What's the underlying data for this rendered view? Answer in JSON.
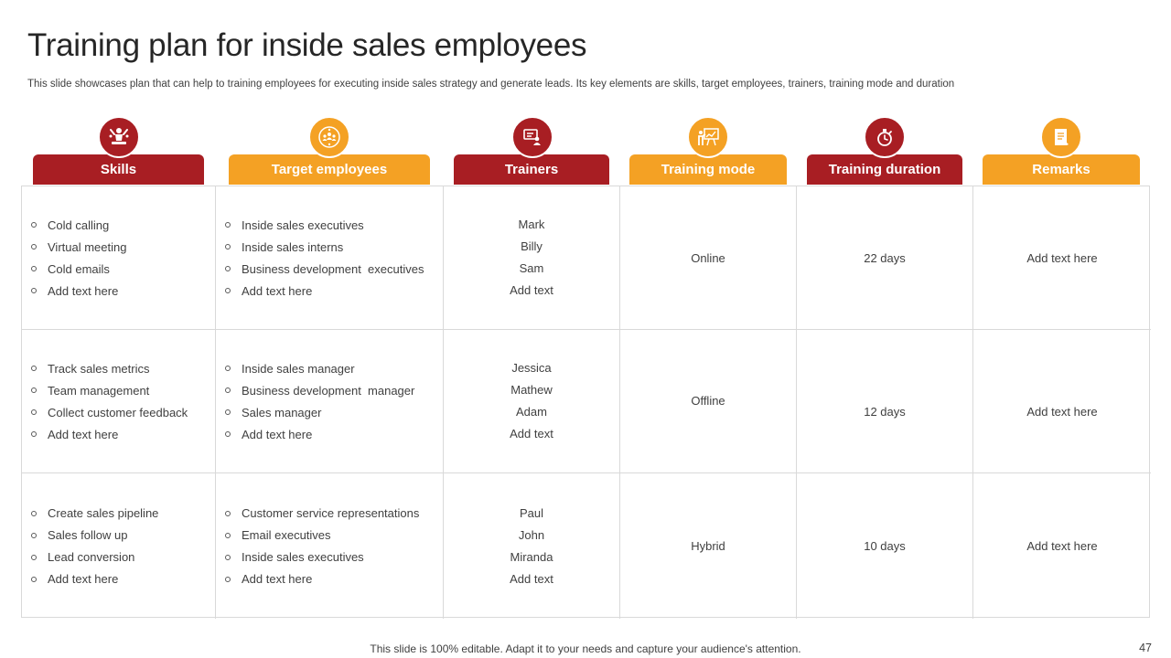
{
  "title": "Training plan for inside sales employees",
  "subtitle": "This slide showcases plan that can help to training employees for executing inside sales strategy and generate leads. Its key elements are skills, target employees, trainers, training mode and duration",
  "colors": {
    "red": "#a81e23",
    "orange": "#f4a124"
  },
  "columns": [
    {
      "label": "Skills",
      "icon": "presenter-icon"
    },
    {
      "label": "Target employees",
      "icon": "team-icon"
    },
    {
      "label": "Trainers",
      "icon": "trainer-board-icon"
    },
    {
      "label": "Training mode",
      "icon": "whiteboard-icon"
    },
    {
      "label": "Training duration",
      "icon": "stopwatch-icon"
    },
    {
      "label": "Remarks",
      "icon": "notepad-icon"
    }
  ],
  "rows": [
    {
      "skills": [
        "Cold calling",
        "Virtual meeting",
        "Cold emails",
        "Add text here"
      ],
      "targets": [
        "Inside sales executives",
        "Inside sales interns",
        "Business development  executives",
        "Add text here"
      ],
      "trainers": [
        "Mark",
        "Billy",
        "Sam",
        "Add text"
      ],
      "mode": "Online",
      "duration": "22 days",
      "remarks": "Add text here"
    },
    {
      "skills": [
        "Track sales metrics",
        "Team management",
        "Collect customer feedback",
        "Add text here"
      ],
      "targets": [
        "Inside sales manager",
        "Business development  manager",
        "Sales manager",
        "Add text here"
      ],
      "trainers": [
        "Jessica",
        "Mathew",
        "Adam",
        "Add text"
      ],
      "mode": "Offline",
      "duration": "12 days",
      "remarks": "Add text here"
    },
    {
      "skills": [
        "Create sales pipeline",
        "Sales follow up",
        "Lead conversion",
        "Add text here"
      ],
      "targets": [
        "Customer service representations",
        "Email executives",
        "Inside sales executives",
        "Add text here"
      ],
      "trainers": [
        "Paul",
        "John",
        "Miranda",
        "Add text"
      ],
      "mode": "Hybrid",
      "duration": "10 days",
      "remarks": "Add text here"
    }
  ],
  "footer": "This slide is 100% editable. Adapt it to your needs and capture your audience's attention.",
  "page_number": "47"
}
